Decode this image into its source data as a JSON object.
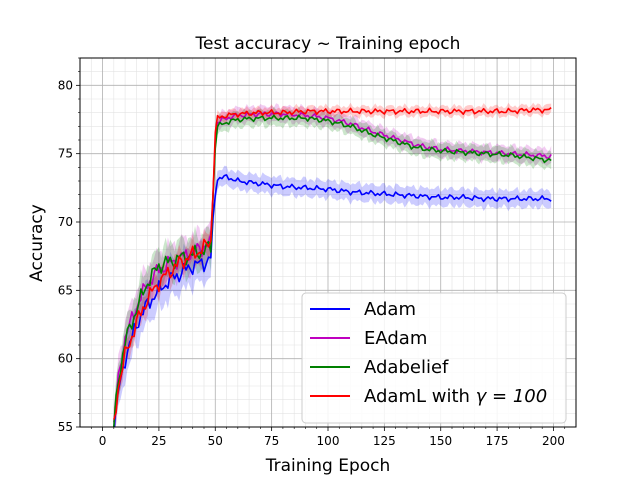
{
  "chart_data": {
    "type": "line",
    "title": "Test accuracy ~ Training epoch",
    "xlabel": "Training Epoch",
    "ylabel": "Accuracy",
    "xlim": [
      -10,
      210
    ],
    "ylim": [
      55,
      82
    ],
    "xticks": [
      0,
      25,
      50,
      75,
      100,
      125,
      150,
      175,
      200
    ],
    "yticks": [
      55,
      60,
      65,
      70,
      75,
      80
    ],
    "grid": "major and minor",
    "legend_position": "lower-right",
    "shaded_bands": true,
    "series": [
      {
        "name": "Adam",
        "label_prefix": "Adam",
        "label_math": "",
        "color": "#0000ff",
        "band": 0.6,
        "points": [
          [
            5,
            55
          ],
          [
            7,
            57.5
          ],
          [
            10,
            60
          ],
          [
            15,
            62.5
          ],
          [
            20,
            64
          ],
          [
            25,
            65
          ],
          [
            30,
            65.8
          ],
          [
            35,
            66.3
          ],
          [
            40,
            66.8
          ],
          [
            45,
            67
          ],
          [
            48,
            67.4
          ],
          [
            50,
            72
          ],
          [
            51,
            73.2
          ],
          [
            55,
            73.3
          ],
          [
            60,
            73
          ],
          [
            70,
            72.8
          ],
          [
            80,
            72.6
          ],
          [
            90,
            72.5
          ],
          [
            100,
            72.4
          ],
          [
            110,
            72.2
          ],
          [
            120,
            72.1
          ],
          [
            130,
            72
          ],
          [
            140,
            71.9
          ],
          [
            150,
            71.8
          ],
          [
            160,
            71.8
          ],
          [
            170,
            71.7
          ],
          [
            180,
            71.7
          ],
          [
            190,
            71.7
          ],
          [
            199,
            71.7
          ]
        ]
      },
      {
        "name": "EAdam",
        "label_prefix": "EAdam",
        "label_math": "",
        "color": "#bf00bf",
        "band": 0.55,
        "points": [
          [
            5,
            55
          ],
          [
            7,
            58.5
          ],
          [
            10,
            61.5
          ],
          [
            15,
            63.8
          ],
          [
            20,
            65.5
          ],
          [
            25,
            66.5
          ],
          [
            30,
            67
          ],
          [
            35,
            67.4
          ],
          [
            40,
            67.8
          ],
          [
            45,
            68.2
          ],
          [
            48,
            68.5
          ],
          [
            50,
            76
          ],
          [
            51,
            77.3
          ],
          [
            55,
            77.6
          ],
          [
            60,
            77.8
          ],
          [
            70,
            77.9
          ],
          [
            80,
            77.9
          ],
          [
            90,
            77.8
          ],
          [
            100,
            77.6
          ],
          [
            110,
            77.2
          ],
          [
            120,
            76.6
          ],
          [
            130,
            76.1
          ],
          [
            140,
            75.6
          ],
          [
            150,
            75.3
          ],
          [
            160,
            75.2
          ],
          [
            170,
            75.1
          ],
          [
            180,
            75
          ],
          [
            190,
            74.9
          ],
          [
            199,
            74.8
          ]
        ]
      },
      {
        "name": "Adabelief",
        "label_prefix": "Adabelief",
        "label_math": "",
        "color": "#008000",
        "band": 0.55,
        "points": [
          [
            5,
            55
          ],
          [
            7,
            58.5
          ],
          [
            10,
            61.2
          ],
          [
            15,
            63.6
          ],
          [
            20,
            65.6
          ],
          [
            25,
            66.8
          ],
          [
            30,
            67.1
          ],
          [
            35,
            67.4
          ],
          [
            40,
            67.6
          ],
          [
            45,
            67.9
          ],
          [
            48,
            68.2
          ],
          [
            50,
            75.5
          ],
          [
            51,
            77
          ],
          [
            55,
            77.3
          ],
          [
            60,
            77.5
          ],
          [
            70,
            77.6
          ],
          [
            80,
            77.6
          ],
          [
            90,
            77.6
          ],
          [
            100,
            77.4
          ],
          [
            110,
            77
          ],
          [
            120,
            76.4
          ],
          [
            130,
            75.9
          ],
          [
            140,
            75.4
          ],
          [
            150,
            75.2
          ],
          [
            160,
            75.1
          ],
          [
            170,
            75
          ],
          [
            180,
            74.9
          ],
          [
            190,
            74.7
          ],
          [
            199,
            74.5
          ]
        ]
      },
      {
        "name": "AdamL with γ = 100",
        "label_prefix": "AdamL with ",
        "label_math": "γ = 100",
        "color": "#ff0000",
        "band": 0.35,
        "points": [
          [
            5,
            55
          ],
          [
            7,
            58
          ],
          [
            10,
            60.2
          ],
          [
            15,
            62.6
          ],
          [
            20,
            64.4
          ],
          [
            25,
            65.6
          ],
          [
            30,
            66.4
          ],
          [
            35,
            67.1
          ],
          [
            40,
            67.6
          ],
          [
            45,
            68.1
          ],
          [
            48,
            68.6
          ],
          [
            50,
            76.5
          ],
          [
            51,
            77.6
          ],
          [
            55,
            77.8
          ],
          [
            60,
            77.9
          ],
          [
            70,
            78
          ],
          [
            80,
            78
          ],
          [
            90,
            78.1
          ],
          [
            100,
            78.1
          ],
          [
            110,
            78.1
          ],
          [
            120,
            78.1
          ],
          [
            130,
            78.1
          ],
          [
            140,
            78.1
          ],
          [
            150,
            78.1
          ],
          [
            160,
            78.1
          ],
          [
            170,
            78.1
          ],
          [
            180,
            78.1
          ],
          [
            190,
            78.2
          ],
          [
            199,
            78.2
          ]
        ]
      }
    ]
  }
}
